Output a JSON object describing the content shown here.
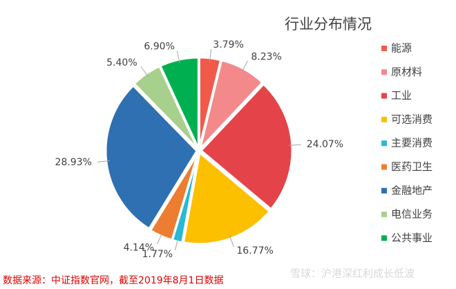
{
  "chart_data": {
    "type": "pie",
    "title": "行业分布情况",
    "categories": [
      "能源",
      "原材料",
      "工业",
      "可选消费",
      "主要消费",
      "医药卫生",
      "金融地产",
      "电信业务",
      "公共事业"
    ],
    "values": [
      3.79,
      8.23,
      24.07,
      16.77,
      1.77,
      4.14,
      28.93,
      5.4,
      6.9
    ],
    "value_labels": [
      "3.79%",
      "8.23%",
      "24.07%",
      "16.77%",
      "1.77%",
      "4.14%",
      "28.93%",
      "5.40%",
      "6.90%"
    ],
    "colors": [
      "#f15a4a",
      "#f4898c",
      "#e4434a",
      "#fcc000",
      "#28b8d8",
      "#ed7d31",
      "#2e70b1",
      "#a8d08d",
      "#00b050"
    ],
    "legend": "right",
    "source": "数据来源：中证指数官网，截至2019年8月1日数据",
    "watermark": "雪球：沪港深红利成长低波"
  }
}
